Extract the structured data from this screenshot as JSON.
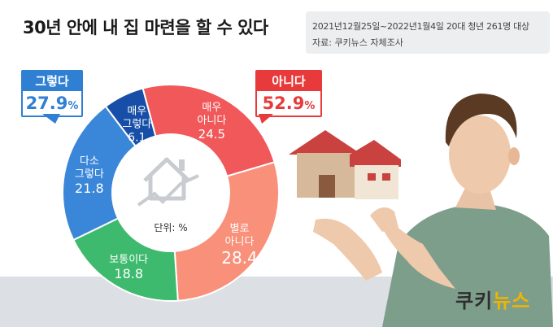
{
  "header": {
    "title": "30년 안에 내 집 마련을 할 수 있다",
    "survey_info": "2021년12월25일~2022년1월4일  20대 청년 261명 대상",
    "source": "자료: 쿠키뉴스 자체조사"
  },
  "callouts": {
    "yes": {
      "label": "그렇다",
      "value": "27.9",
      "unit": "%",
      "color": "#2f7fd3"
    },
    "no": {
      "label": "아니다",
      "value": "52.9",
      "unit": "%",
      "color": "#e8393b"
    }
  },
  "center_label": "단위: %",
  "logo": {
    "text_main": "쿠키",
    "text_accent": "뉴스"
  },
  "chart_data": {
    "type": "pie",
    "variant": "donut",
    "unit": "%",
    "start_angle_deg": -15,
    "slices": [
      {
        "label": "매우\n아니다",
        "value": 24.5,
        "color": "#f0585a"
      },
      {
        "label": "별로\n아니다",
        "value": 28.4,
        "color": "#f8907a"
      },
      {
        "label": "보통이다",
        "value": 18.8,
        "color": "#3dba6e"
      },
      {
        "label": "다소\n그렇다",
        "value": 21.8,
        "color": "#3a86d8"
      },
      {
        "label": "매우\n그렇다",
        "value": 6.1,
        "color": "#174fa8"
      }
    ],
    "groups": [
      {
        "label": "그렇다",
        "value": 27.9
      },
      {
        "label": "아니다",
        "value": 52.9
      }
    ]
  }
}
